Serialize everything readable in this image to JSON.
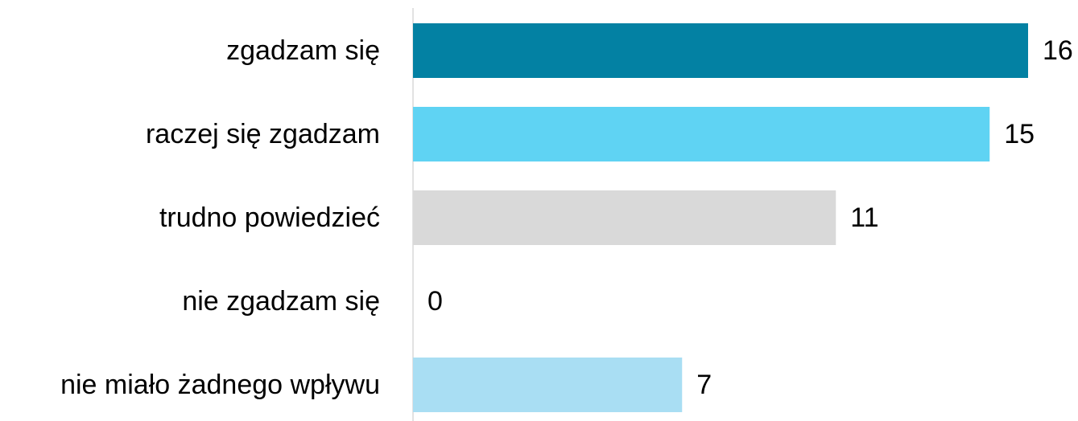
{
  "chart_data": {
    "type": "bar",
    "orientation": "horizontal",
    "categories": [
      "zgadzam się",
      "raczej się zgadzam",
      "trudno powiedzieć",
      "nie zgadzam się",
      "nie miało żadnego wpływu"
    ],
    "values": [
      16,
      15,
      11,
      0,
      7
    ],
    "colors": [
      "#0381a3",
      "#5fd3f3",
      "#d9d9d9",
      "#1f4e79",
      "#a9def3"
    ]
  }
}
